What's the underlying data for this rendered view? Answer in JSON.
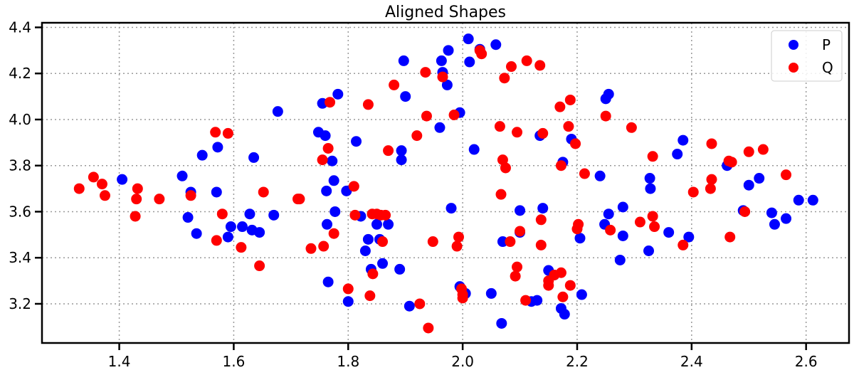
{
  "chart_data": {
    "type": "scatter",
    "title": "Aligned Shapes",
    "xlabel": "",
    "ylabel": "",
    "xlim": [
      1.265,
      2.675
    ],
    "ylim": [
      3.03,
      4.42
    ],
    "xticks": [
      "1.4",
      "1.6",
      "1.8",
      "2.0",
      "2.2",
      "2.4",
      "2.6"
    ],
    "yticks": [
      "3.2",
      "3.4",
      "3.6",
      "3.8",
      "4.0",
      "4.2",
      "4.4"
    ],
    "grid": true,
    "legend_position": "upper right",
    "series": [
      {
        "name": "P",
        "color": "#0000ff",
        "points": [
          [
            1.405,
            3.74
          ],
          [
            1.51,
            3.755
          ],
          [
            1.52,
            3.575
          ],
          [
            1.525,
            3.685
          ],
          [
            1.535,
            3.505
          ],
          [
            1.545,
            3.845
          ],
          [
            1.57,
            3.685
          ],
          [
            1.572,
            3.88
          ],
          [
            1.59,
            3.49
          ],
          [
            1.595,
            3.535
          ],
          [
            1.615,
            3.535
          ],
          [
            1.628,
            3.59
          ],
          [
            1.632,
            3.52
          ],
          [
            1.635,
            3.835
          ],
          [
            1.645,
            3.51
          ],
          [
            1.67,
            3.585
          ],
          [
            1.677,
            4.035
          ],
          [
            1.748,
            3.945
          ],
          [
            1.755,
            4.07
          ],
          [
            1.76,
            3.93
          ],
          [
            1.762,
            3.69
          ],
          [
            1.763,
            3.545
          ],
          [
            1.765,
            3.295
          ],
          [
            1.772,
            3.82
          ],
          [
            1.775,
            3.735
          ],
          [
            1.777,
            3.6
          ],
          [
            1.782,
            4.11
          ],
          [
            1.797,
            3.69
          ],
          [
            1.8,
            3.21
          ],
          [
            1.814,
            3.905
          ],
          [
            1.822,
            3.58
          ],
          [
            1.83,
            3.43
          ],
          [
            1.835,
            3.48
          ],
          [
            1.84,
            3.35
          ],
          [
            1.85,
            3.545
          ],
          [
            1.855,
            3.48
          ],
          [
            1.86,
            3.375
          ],
          [
            1.87,
            3.545
          ],
          [
            1.89,
            3.35
          ],
          [
            1.893,
            3.865
          ],
          [
            1.893,
            3.825
          ],
          [
            1.897,
            4.255
          ],
          [
            1.9,
            4.1
          ],
          [
            1.907,
            3.19
          ],
          [
            1.96,
            3.965
          ],
          [
            1.963,
            4.255
          ],
          [
            1.965,
            4.205
          ],
          [
            1.973,
            4.15
          ],
          [
            1.975,
            4.3
          ],
          [
            1.98,
            3.615
          ],
          [
            1.995,
            4.03
          ],
          [
            1.995,
            3.275
          ],
          [
            2.005,
            3.245
          ],
          [
            2.01,
            4.35
          ],
          [
            2.012,
            4.25
          ],
          [
            2.02,
            3.87
          ],
          [
            2.03,
            4.305
          ],
          [
            2.05,
            3.245
          ],
          [
            2.058,
            4.325
          ],
          [
            2.068,
            3.115
          ],
          [
            2.07,
            3.47
          ],
          [
            2.1,
            3.605
          ],
          [
            2.1,
            3.51
          ],
          [
            2.12,
            3.21
          ],
          [
            2.13,
            3.215
          ],
          [
            2.135,
            3.93
          ],
          [
            2.14,
            3.615
          ],
          [
            2.15,
            3.345
          ],
          [
            2.16,
            3.325
          ],
          [
            2.172,
            3.18
          ],
          [
            2.175,
            3.815
          ],
          [
            2.178,
            3.155
          ],
          [
            2.19,
            3.915
          ],
          [
            2.205,
            3.485
          ],
          [
            2.208,
            3.24
          ],
          [
            2.24,
            3.755
          ],
          [
            2.248,
            3.545
          ],
          [
            2.25,
            4.09
          ],
          [
            2.255,
            4.11
          ],
          [
            2.255,
            3.59
          ],
          [
            2.275,
            3.39
          ],
          [
            2.28,
            3.62
          ],
          [
            2.28,
            3.495
          ],
          [
            2.325,
            3.43
          ],
          [
            2.327,
            3.745
          ],
          [
            2.328,
            3.7
          ],
          [
            2.36,
            3.51
          ],
          [
            2.375,
            3.85
          ],
          [
            2.385,
            3.91
          ],
          [
            2.395,
            3.49
          ],
          [
            2.462,
            3.8
          ],
          [
            2.49,
            3.605
          ],
          [
            2.5,
            3.715
          ],
          [
            2.518,
            3.745
          ],
          [
            2.54,
            3.595
          ],
          [
            2.545,
            3.545
          ],
          [
            2.565,
            3.57
          ],
          [
            2.587,
            3.65
          ],
          [
            2.612,
            3.65
          ]
        ]
      },
      {
        "name": "Q",
        "color": "#ff0000",
        "points": [
          [
            1.33,
            3.7
          ],
          [
            1.355,
            3.75
          ],
          [
            1.37,
            3.72
          ],
          [
            1.375,
            3.67
          ],
          [
            1.428,
            3.58
          ],
          [
            1.43,
            3.655
          ],
          [
            1.432,
            3.7
          ],
          [
            1.47,
            3.655
          ],
          [
            1.525,
            3.67
          ],
          [
            1.568,
            3.945
          ],
          [
            1.57,
            3.475
          ],
          [
            1.58,
            3.59
          ],
          [
            1.59,
            3.94
          ],
          [
            1.613,
            3.445
          ],
          [
            1.645,
            3.365
          ],
          [
            1.652,
            3.685
          ],
          [
            1.712,
            3.655
          ],
          [
            1.715,
            3.655
          ],
          [
            1.735,
            3.44
          ],
          [
            1.755,
            3.825
          ],
          [
            1.757,
            3.45
          ],
          [
            1.765,
            3.875
          ],
          [
            1.768,
            4.075
          ],
          [
            1.775,
            3.505
          ],
          [
            1.8,
            3.265
          ],
          [
            1.81,
            3.71
          ],
          [
            1.812,
            3.585
          ],
          [
            1.835,
            4.065
          ],
          [
            1.838,
            3.235
          ],
          [
            1.842,
            3.59
          ],
          [
            1.843,
            3.33
          ],
          [
            1.85,
            3.59
          ],
          [
            1.857,
            3.585
          ],
          [
            1.86,
            3.47
          ],
          [
            1.865,
            3.585
          ],
          [
            1.87,
            3.865
          ],
          [
            1.88,
            4.15
          ],
          [
            1.92,
            3.93
          ],
          [
            1.925,
            3.2
          ],
          [
            1.935,
            4.205
          ],
          [
            1.937,
            4.015
          ],
          [
            1.94,
            3.095
          ],
          [
            1.948,
            3.47
          ],
          [
            1.965,
            4.185
          ],
          [
            1.985,
            4.02
          ],
          [
            1.99,
            3.45
          ],
          [
            1.993,
            3.49
          ],
          [
            1.998,
            3.265
          ],
          [
            2.0,
            3.24
          ],
          [
            2.0,
            3.225
          ],
          [
            2.03,
            4.3
          ],
          [
            2.033,
            4.285
          ],
          [
            2.065,
            3.97
          ],
          [
            2.067,
            3.675
          ],
          [
            2.07,
            3.825
          ],
          [
            2.073,
            4.18
          ],
          [
            2.075,
            3.79
          ],
          [
            2.083,
            3.47
          ],
          [
            2.085,
            4.23
          ],
          [
            2.092,
            3.32
          ],
          [
            2.095,
            3.945
          ],
          [
            2.095,
            3.36
          ],
          [
            2.1,
            3.515
          ],
          [
            2.11,
            3.215
          ],
          [
            2.112,
            4.255
          ],
          [
            2.135,
            4.235
          ],
          [
            2.137,
            3.565
          ],
          [
            2.137,
            3.455
          ],
          [
            2.14,
            3.94
          ],
          [
            2.15,
            3.3
          ],
          [
            2.15,
            3.28
          ],
          [
            2.16,
            3.325
          ],
          [
            2.172,
            3.335
          ],
          [
            2.17,
            4.055
          ],
          [
            2.172,
            3.8
          ],
          [
            2.175,
            3.23
          ],
          [
            2.185,
            3.97
          ],
          [
            2.188,
            4.085
          ],
          [
            2.188,
            3.28
          ],
          [
            2.197,
            3.895
          ],
          [
            2.202,
            3.545
          ],
          [
            2.2,
            3.525
          ],
          [
            2.213,
            3.765
          ],
          [
            2.25,
            4.015
          ],
          [
            2.258,
            3.52
          ],
          [
            2.295,
            3.965
          ],
          [
            2.31,
            3.555
          ],
          [
            2.332,
            3.84
          ],
          [
            2.332,
            3.58
          ],
          [
            2.335,
            3.535
          ],
          [
            2.385,
            3.455
          ],
          [
            2.403,
            3.685
          ],
          [
            2.435,
            3.895
          ],
          [
            2.435,
            3.74
          ],
          [
            2.433,
            3.7
          ],
          [
            2.465,
            3.82
          ],
          [
            2.47,
            3.815
          ],
          [
            2.467,
            3.49
          ],
          [
            2.493,
            3.6
          ],
          [
            2.5,
            3.86
          ],
          [
            2.525,
            3.87
          ],
          [
            2.565,
            3.76
          ]
        ]
      }
    ]
  }
}
